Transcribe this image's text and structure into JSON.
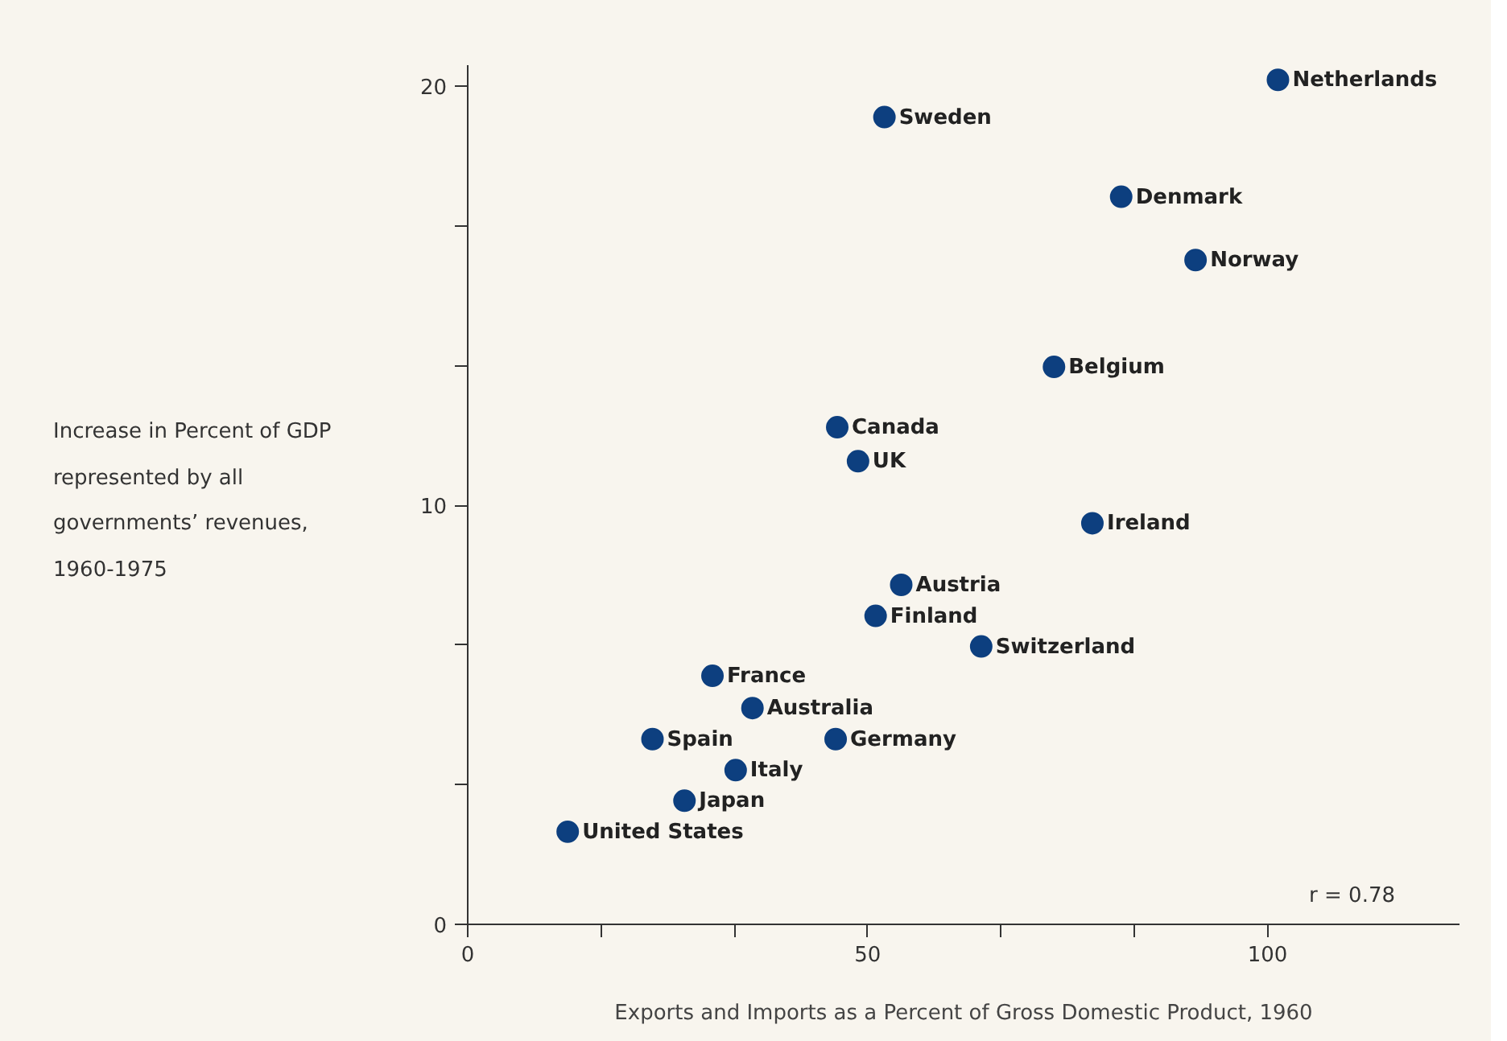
{
  "chart_data": {
    "type": "scatter",
    "xlabel": "Exports and Imports as a Percent of Gross Domestic Product, 1960",
    "ylabel": "Increase in Percent of GDP represented by all governments’ revenues, 1960-1975",
    "x": [
      101.3,
      52.1,
      81.7,
      91.0,
      73.3,
      46.2,
      48.8,
      78.1,
      54.2,
      51.0,
      64.2,
      30.6,
      35.6,
      23.1,
      46.0,
      33.5,
      27.1,
      12.5
    ],
    "series": [
      {
        "color": "#0d3f7f",
        "values": [
          20.15,
          19.26,
          17.36,
          15.85,
          13.3,
          11.86,
          11.05,
          9.57,
          8.1,
          7.36,
          6.63,
          5.93,
          5.16,
          4.42,
          4.42,
          3.68,
          2.95,
          2.21
        ]
      }
    ],
    "xlim": [
      0,
      124
    ],
    "ylim": [
      0,
      20.5
    ],
    "xticks": [
      0,
      {
        "value": 16.67,
        "label": null
      },
      {
        "value": 33.33,
        "label": null
      },
      50,
      {
        "value": 66.67,
        "label": null
      },
      {
        "value": 83.33,
        "label": null
      },
      100
    ],
    "yticks": [
      0,
      {
        "value": 3.33,
        "label": null
      },
      {
        "value": 6.67,
        "label": null
      },
      10,
      {
        "value": 13.33,
        "label": null
      },
      {
        "value": 16.67,
        "label": null
      },
      20
    ],
    "marker": "circle",
    "grid": false,
    "annotations": [
      {
        "text": "Netherlands",
        "x": 101.3,
        "y": 20.15
      },
      {
        "text": "Sweden",
        "x": 52.1,
        "y": 19.26
      },
      {
        "text": "Denmark",
        "x": 81.7,
        "y": 17.36
      },
      {
        "text": "Norway",
        "x": 91.0,
        "y": 15.85
      },
      {
        "text": "Belgium",
        "x": 73.3,
        "y": 13.3
      },
      {
        "text": "Canada",
        "x": 46.2,
        "y": 11.86
      },
      {
        "text": "UK",
        "x": 48.8,
        "y": 11.05
      },
      {
        "text": "Ireland",
        "x": 78.1,
        "y": 9.57
      },
      {
        "text": "Austria",
        "x": 54.2,
        "y": 8.1
      },
      {
        "text": "Finland",
        "x": 51.0,
        "y": 7.36
      },
      {
        "text": "Switzerland",
        "x": 64.2,
        "y": 6.63
      },
      {
        "text": "France",
        "x": 30.6,
        "y": 5.93
      },
      {
        "text": "Australia",
        "x": 35.6,
        "y": 5.16
      },
      {
        "text": "Spain",
        "x": 23.1,
        "y": 4.42
      },
      {
        "text": "Germany",
        "x": 46.0,
        "y": 4.42
      },
      {
        "text": "Italy",
        "x": 33.5,
        "y": 3.68
      },
      {
        "text": "Japan",
        "x": 27.1,
        "y": 2.95
      },
      {
        "text": "United States",
        "x": 12.5,
        "y": 2.21
      },
      "r = 0.78"
    ]
  }
}
